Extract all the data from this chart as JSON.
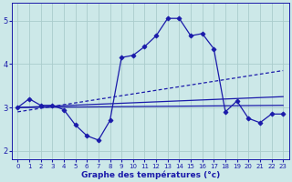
{
  "xlabel": "Graphe des températures (°c)",
  "bg_color": "#cce8e8",
  "grid_color": "#aacccc",
  "line_color": "#1a1aaa",
  "xlim": [
    -0.5,
    23.5
  ],
  "ylim": [
    1.8,
    5.4
  ],
  "xticks": [
    0,
    1,
    2,
    3,
    4,
    5,
    6,
    7,
    8,
    9,
    10,
    11,
    12,
    13,
    14,
    15,
    16,
    17,
    18,
    19,
    20,
    21,
    22,
    23
  ],
  "yticks": [
    2,
    3,
    4,
    5
  ],
  "series_main": {
    "x": [
      0,
      1,
      2,
      3,
      4,
      5,
      6,
      7,
      8,
      9,
      10,
      11,
      12,
      13,
      14,
      15,
      16,
      17,
      18,
      19,
      20,
      21,
      22,
      23
    ],
    "y": [
      3.0,
      3.2,
      3.05,
      3.05,
      2.95,
      2.6,
      2.35,
      2.25,
      2.7,
      4.15,
      4.2,
      4.4,
      4.65,
      5.05,
      5.05,
      4.65,
      4.7,
      4.35,
      2.9,
      3.15,
      2.75,
      2.65,
      2.85,
      2.85
    ]
  },
  "series_flat": {
    "x": [
      0,
      23
    ],
    "y": [
      3.0,
      3.05
    ]
  },
  "series_diag": {
    "x": [
      0,
      23
    ],
    "y": [
      2.9,
      3.85
    ]
  },
  "series_mid": {
    "x": [
      0,
      23
    ],
    "y": [
      3.0,
      3.25
    ]
  }
}
